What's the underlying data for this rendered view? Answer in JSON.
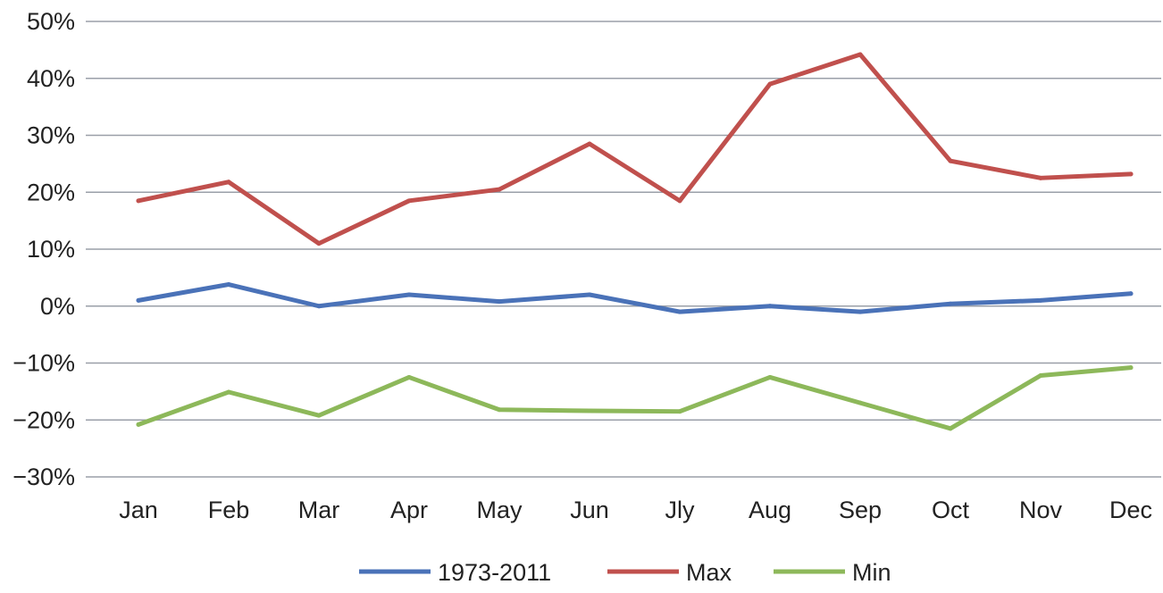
{
  "chart_data": {
    "type": "line",
    "categories": [
      "Jan",
      "Feb",
      "Mar",
      "Apr",
      "May",
      "Jun",
      "Jly",
      "Aug",
      "Sep",
      "Oct",
      "Nov",
      "Dec"
    ],
    "y_ticks": [
      "50%",
      "40%",
      "30%",
      "20%",
      "10%",
      "0%",
      "−10%",
      "−20%",
      "−30%"
    ],
    "ylim": [
      -30,
      50
    ],
    "y_unit": "%",
    "grid": true,
    "legend_position": "bottom",
    "series": [
      {
        "name": "1973-2011",
        "color": "#4a72b8",
        "values": [
          1.0,
          3.8,
          0.0,
          2.0,
          0.8,
          2.0,
          -1.0,
          0.0,
          -1.0,
          0.4,
          1.0,
          2.2
        ]
      },
      {
        "name": "Max",
        "color": "#c0504d",
        "values": [
          18.5,
          21.8,
          11.0,
          18.5,
          20.5,
          28.5,
          18.5,
          39.0,
          44.2,
          25.5,
          22.5,
          23.2
        ]
      },
      {
        "name": "Min",
        "color": "#8db85a",
        "values": [
          -20.8,
          -15.1,
          -19.2,
          -12.5,
          -18.2,
          -18.4,
          -18.5,
          -12.5,
          -17.0,
          -21.5,
          -12.2,
          -10.8
        ]
      }
    ]
  }
}
